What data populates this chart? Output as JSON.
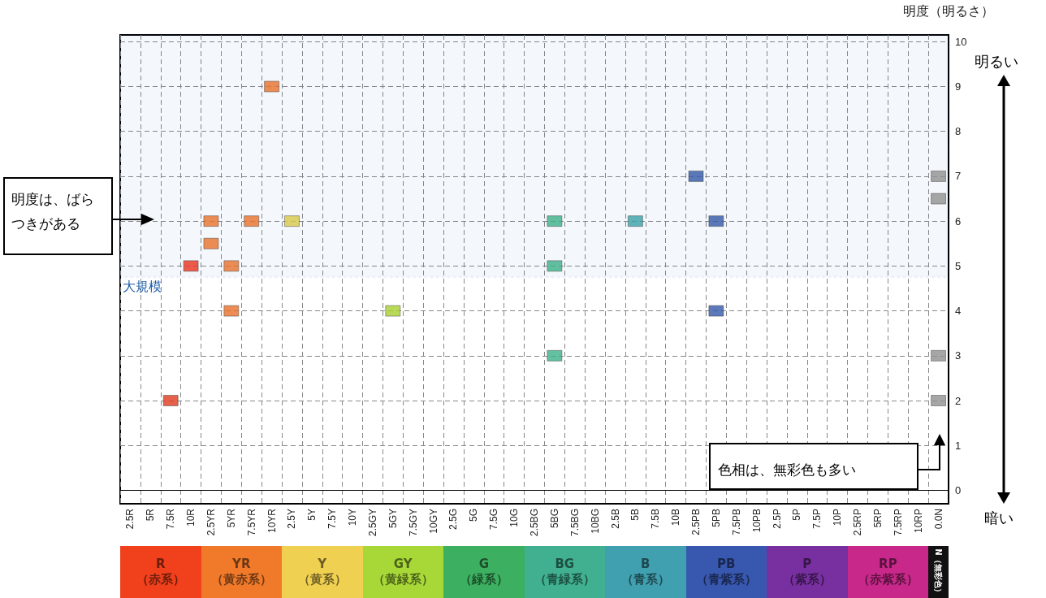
{
  "chart_data": [
    {
      "type": "scatter",
      "categories": [
        "2.5R",
        "5R",
        "7.5R",
        "10R",
        "2.5YR",
        "5YR",
        "7.5YR",
        "10YR",
        "2.5Y",
        "5Y",
        "7.5Y",
        "10Y",
        "2.5GY",
        "5GY",
        "7.5GY",
        "10GY",
        "2.5G",
        "5G",
        "7.5G",
        "10G",
        "2.5BG",
        "5BG",
        "7.5BG",
        "10BG",
        "2.5B",
        "5B",
        "7.5B",
        "10B",
        "2.5PB",
        "5PB",
        "7.5PB",
        "10PB",
        "2.5P",
        "5P",
        "7.5P",
        "10P",
        "2.5RP",
        "5RP",
        "7.5RP",
        "10RP",
        "0.0N"
      ],
      "series": [
        {
          "x": [
            "10YR",
            "2.5YR",
            "7.5YR",
            "2.5Y",
            "2.5YR",
            "10R",
            "5YR",
            "5YR",
            "7.5R",
            "5GY",
            "5BG",
            "5BG",
            "5BG",
            "5B",
            "2.5PB",
            "5PB",
            "5PB",
            "0.0N",
            "0.0N",
            "0.0N",
            "0.0N"
          ],
          "values": [
            9,
            6,
            6,
            6,
            5.5,
            5,
            5,
            4,
            2,
            4,
            6,
            5,
            3,
            6,
            7,
            6,
            4,
            7,
            6.5,
            3,
            2
          ],
          "colors": [
            "#e8712a",
            "#e8712a",
            "#e8712a",
            "#d8c84a",
            "#e8712a",
            "#e8321e",
            "#e8712a",
            "#e8712a",
            "#e03a1e",
            "#a8d030",
            "#3cb08a",
            "#3cb08a",
            "#3cb08a",
            "#3aa0a8",
            "#3358a8",
            "#3358a8",
            "#3358a8",
            "#909090",
            "#909090",
            "#909090",
            "#909090"
          ]
        }
      ],
      "ylabel": "明度（明るさ）",
      "ylim": [
        -0.3,
        10.15
      ],
      "yticks": [
        0,
        1,
        2,
        3,
        4,
        5,
        6,
        7,
        8,
        9,
        10
      ],
      "grid": true,
      "marker": "square",
      "bands": [
        {
          "axis": "y",
          "from": 4.75,
          "to": 10.15,
          "label": "大規模",
          "color": "#1f5fa8"
        }
      ],
      "annotations": [
        "明度は、ばらつきがある",
        "色相は、無彩色も多い",
        "明るい",
        "暗い"
      ]
    },
    {
      "type": "other",
      "categories": [
        "R\n（赤系）",
        "YR\n（黄赤系）",
        "Y\n（黄系）",
        "GY\n（黄緑系）",
        "G\n（緑系）",
        "BG\n（青緑系）",
        "B\n（青系）",
        "PB\n（青紫系）",
        "P\n（紫系）",
        "RP\n（赤紫系）",
        "N（無彩色）"
      ],
      "colors": [
        "#f0401c",
        "#f07a2a",
        "#f0d050",
        "#a8d838",
        "#3cb060",
        "#40b090",
        "#40a0b0",
        "#3858b0",
        "#7830a0",
        "#c8288a",
        "#111111"
      ]
    }
  ]
}
